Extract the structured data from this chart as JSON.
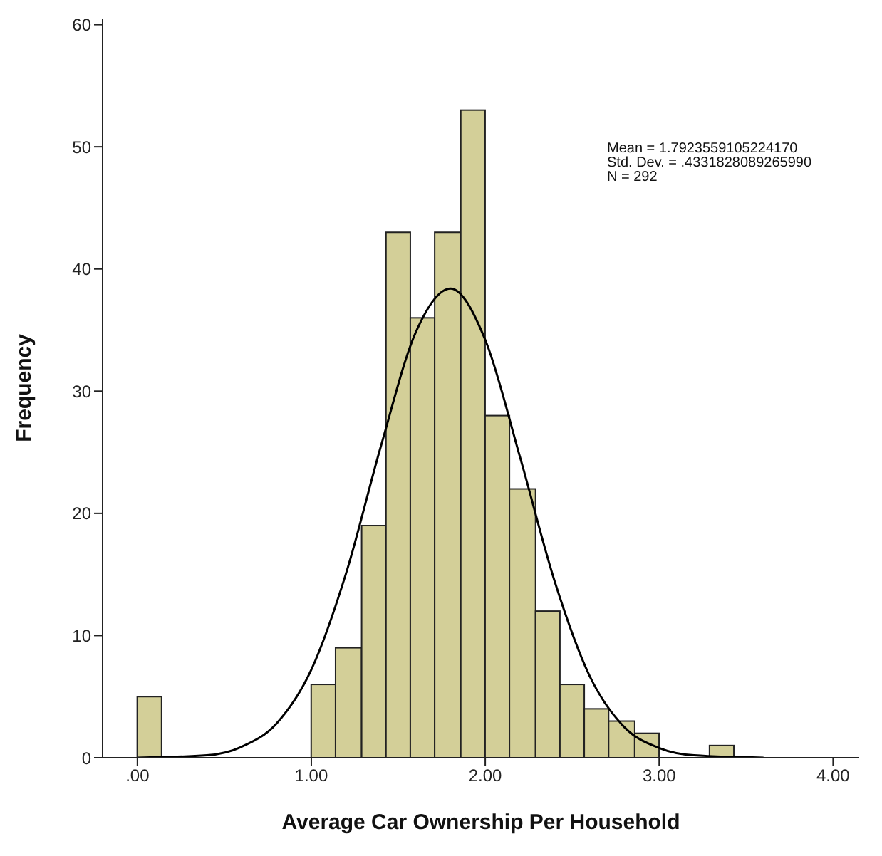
{
  "chart_data": {
    "type": "histogram",
    "xlabel": "Average Car Ownership Per Household",
    "ylabel": "Frequency",
    "annotations": [
      "Mean = 1.7923559105224170",
      "Std. Dev. = .4331828089265990",
      "N = 292"
    ],
    "bins": [
      0,
      0.14,
      1,
      1.14,
      1.29,
      1.43,
      1.57,
      1.71,
      1.86,
      2,
      2.14,
      2.29,
      2.43,
      2.57,
      2.71,
      2.86,
      3,
      3.29,
      3.43
    ],
    "values": [
      5,
      0,
      6,
      9,
      19,
      43,
      36,
      43,
      53,
      28,
      22,
      12,
      6,
      4,
      3,
      2,
      0,
      1
    ],
    "color": "#d3cf98",
    "series": [
      {
        "type": "line",
        "color": "#000000",
        "x": [
          0,
          0.4,
          0.6,
          0.8,
          1,
          1.2,
          1.4,
          1.6,
          1.8,
          2,
          2.2,
          2.4,
          2.6,
          2.8,
          3,
          3.2,
          3.6
        ],
        "values": [
          0,
          0.2,
          0.9,
          2.8,
          7.2,
          15.1,
          25.5,
          34.8,
          38.4,
          34.2,
          24.6,
          14.4,
          6.7,
          2.5,
          0.8,
          0.2,
          0
        ]
      }
    ],
    "xlim": [
      -0.2,
      4.15
    ],
    "ylim": [
      0,
      60.5
    ],
    "xticks": [
      {
        "value": 0,
        "label": ".00"
      },
      {
        "value": 1,
        "label": "1.00"
      },
      {
        "value": 2,
        "label": "2.00"
      },
      {
        "value": 3,
        "label": "3.00"
      },
      {
        "value": 4,
        "label": "4.00"
      }
    ],
    "yticks": [
      0,
      10,
      20,
      30,
      40,
      50,
      60
    ]
  }
}
